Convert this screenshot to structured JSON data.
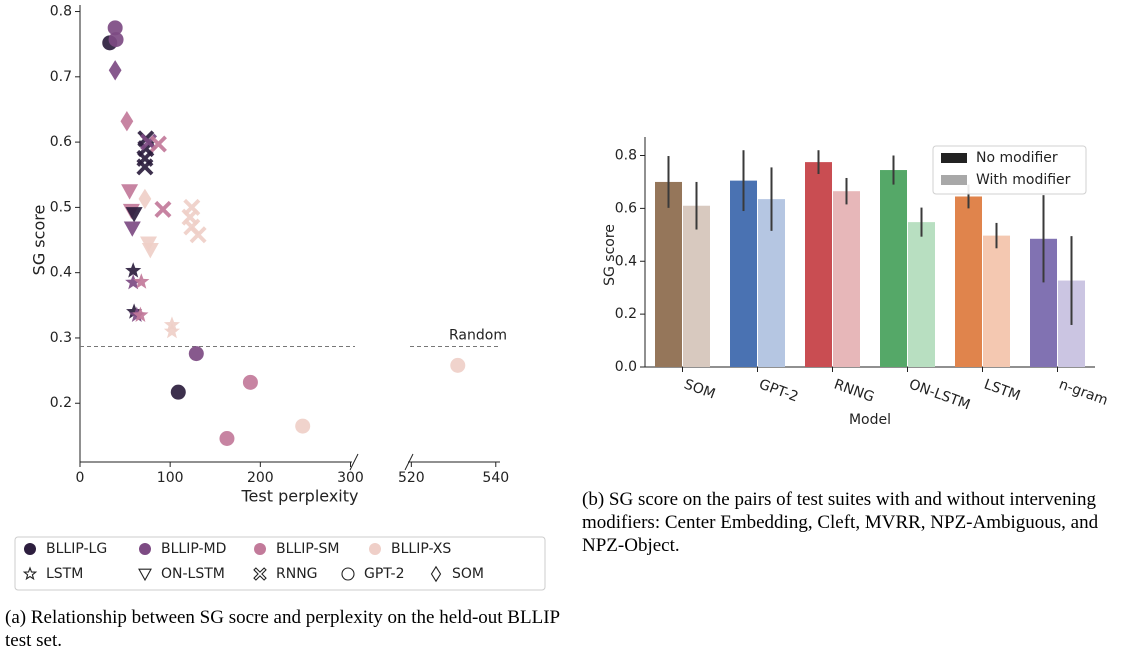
{
  "chart_data": [
    {
      "type": "scatter",
      "xlabel": "Test perplexity",
      "ylabel": "SG score",
      "xlim": [
        [
          0,
          305
        ],
        [
          518.5,
          541
        ]
      ],
      "xticks": [
        0,
        100,
        200,
        300,
        520,
        540
      ],
      "ylim": [
        0.11,
        0.81
      ],
      "yticks": [
        0.2,
        0.3,
        0.4,
        0.5,
        0.6,
        0.7,
        0.8
      ],
      "random": {
        "label": "Random",
        "value": 0.287
      },
      "legend": {
        "corpora": [
          {
            "name": "BLLIP-LG",
            "color": "#2d1e3e"
          },
          {
            "name": "BLLIP-MD",
            "color": "#7d4b83"
          },
          {
            "name": "BLLIP-SM",
            "color": "#c27a9a"
          },
          {
            "name": "BLLIP-XS",
            "color": "#efcfc8"
          }
        ],
        "models": [
          {
            "name": "LSTM",
            "marker": "star"
          },
          {
            "name": "ON-LSTM",
            "marker": "triangle-down"
          },
          {
            "name": "RNNG",
            "marker": "x"
          },
          {
            "name": "GPT-2",
            "marker": "circle"
          },
          {
            "name": "SOM",
            "marker": "diamond"
          }
        ]
      },
      "series": [
        {
          "corpus": "BLLIP-LG",
          "model": "GPT-2",
          "x": [
            33,
            109
          ],
          "y": [
            0.752,
            0.217
          ]
        },
        {
          "corpus": "BLLIP-MD",
          "model": "GPT-2",
          "x": [
            39,
            40,
            129
          ],
          "y": [
            0.775,
            0.757,
            0.276
          ]
        },
        {
          "corpus": "BLLIP-SM",
          "model": "GPT-2",
          "x": [
            189,
            163
          ],
          "y": [
            0.232,
            0.146
          ]
        },
        {
          "corpus": "BLLIP-XS",
          "model": "GPT-2",
          "x": [
            247,
            531
          ],
          "y": [
            0.165,
            0.258
          ]
        },
        {
          "corpus": "BLLIP-MD",
          "model": "SOM",
          "x": [
            39
          ],
          "y": [
            0.71
          ]
        },
        {
          "corpus": "BLLIP-SM",
          "model": "SOM",
          "x": [
            52
          ],
          "y": [
            0.632
          ]
        },
        {
          "corpus": "BLLIP-XS",
          "model": "SOM",
          "x": [
            72
          ],
          "y": [
            0.513
          ]
        },
        {
          "corpus": "BLLIP-SM",
          "model": "ON-LSTM",
          "x": [
            55,
            57
          ],
          "y": [
            0.525,
            0.495
          ]
        },
        {
          "corpus": "BLLIP-LG",
          "model": "ON-LSTM",
          "x": [
            60
          ],
          "y": [
            0.49
          ]
        },
        {
          "corpus": "BLLIP-MD",
          "model": "ON-LSTM",
          "x": [
            58
          ],
          "y": [
            0.468
          ]
        },
        {
          "corpus": "BLLIP-XS",
          "model": "ON-LSTM",
          "x": [
            76,
            78
          ],
          "y": [
            0.445,
            0.435
          ]
        },
        {
          "corpus": "BLLIP-LG",
          "model": "LSTM",
          "x": [
            59,
            60
          ],
          "y": [
            0.403,
            0.34
          ]
        },
        {
          "corpus": "BLLIP-MD",
          "model": "LSTM",
          "x": [
            59,
            63
          ],
          "y": [
            0.385,
            0.335
          ]
        },
        {
          "corpus": "BLLIP-SM",
          "model": "LSTM",
          "x": [
            68,
            67
          ],
          "y": [
            0.386,
            0.335
          ]
        },
        {
          "corpus": "BLLIP-XS",
          "model": "LSTM",
          "x": [
            102,
            102
          ],
          "y": [
            0.32,
            0.31
          ]
        },
        {
          "corpus": "BLLIP-LG",
          "model": "RNNG",
          "x": [
            73,
            73,
            72,
            72
          ],
          "y": [
            0.605,
            0.59,
            0.575,
            0.562
          ]
        },
        {
          "corpus": "BLLIP-MD",
          "model": "RNNG",
          "x": [
            76
          ],
          "y": [
            0.6
          ]
        },
        {
          "corpus": "BLLIP-SM",
          "model": "RNNG",
          "x": [
            87,
            92
          ],
          "y": [
            0.597,
            0.497
          ]
        },
        {
          "corpus": "BLLIP-XS",
          "model": "RNNG",
          "x": [
            124,
            122,
            124,
            131
          ],
          "y": [
            0.5,
            0.485,
            0.47,
            0.458
          ]
        }
      ],
      "caption": "(a) Relationship between SG socre and perplexity on the held-out BLLIP test set."
    },
    {
      "type": "bar",
      "xlabel": "Model",
      "ylabel": "SG score",
      "categories": [
        "SOM",
        "GPT-2",
        "RNNG",
        "ON-LSTM",
        "LSTM",
        "n-gram"
      ],
      "ylim": [
        0,
        0.87
      ],
      "yticks": [
        {
          "value": 0,
          "label": "0.0"
        },
        0.2,
        0.4,
        0.6,
        0.8
      ],
      "series": [
        {
          "name": "No modifier",
          "color": "#222222",
          "bar_colors": [
            "#95765a",
            "#4a72b2",
            "#c94d52",
            "#55a868",
            "#e0844c",
            "#8172b2"
          ],
          "values": [
            0.7,
            0.705,
            0.775,
            0.745,
            0.645,
            0.485
          ],
          "errors": [
            0.098,
            0.115,
            0.045,
            0.055,
            0.045,
            0.165
          ]
        },
        {
          "name": "With modifier",
          "color": "#a8a8a8",
          "bar_colors": [
            "#d8c9bf",
            "#b5c6e2",
            "#e7b7b9",
            "#b8dfc1",
            "#f4c8b1",
            "#cbc5e2"
          ],
          "values": [
            0.61,
            0.635,
            0.665,
            0.548,
            0.497,
            0.327
          ],
          "errors": [
            0.09,
            0.12,
            0.05,
            0.055,
            0.048,
            0.168
          ]
        }
      ],
      "caption": "(b) SG score on the pairs of test suites with and without intervening modifiers: Center Embedding, Cleft, MVRR, NPZ-Ambiguous, and NPZ-Object."
    }
  ]
}
